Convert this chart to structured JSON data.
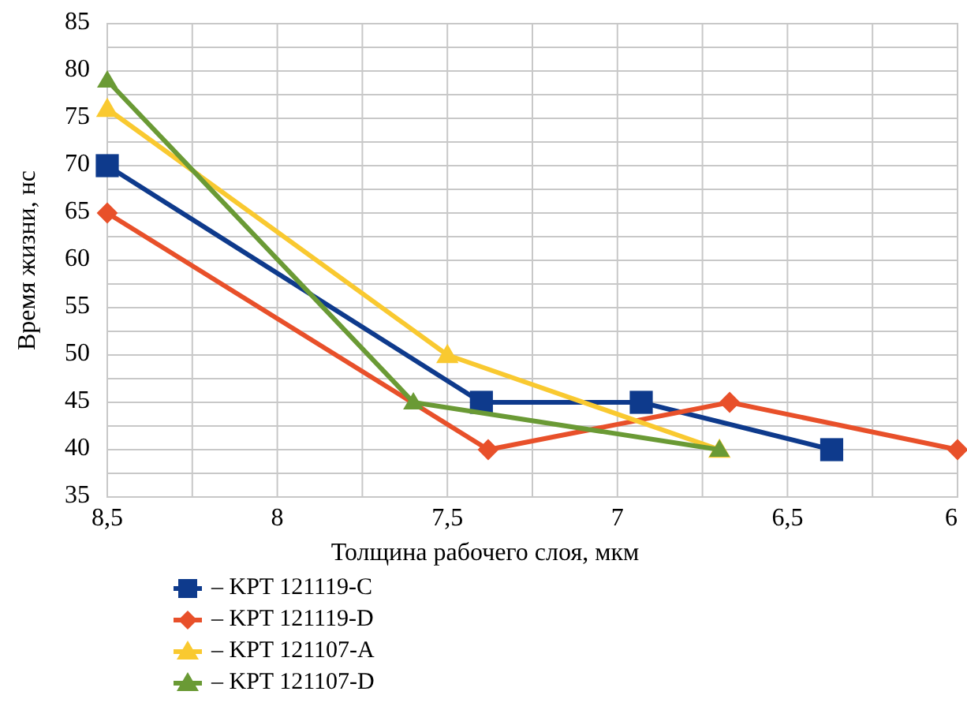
{
  "chart_data": {
    "type": "line",
    "xlabel": "Толщина рабочего слоя, мкм",
    "ylabel": "Время жизни, нс",
    "xlim": [
      8.5,
      6
    ],
    "ylim": [
      35,
      85
    ],
    "xticks": [
      {
        "value": 8.5,
        "label": "8,5"
      },
      {
        "value": 8.25,
        "label": null
      },
      8,
      {
        "value": 7.75,
        "label": null
      },
      {
        "value": 7.5,
        "label": "7,5"
      },
      {
        "value": 7.25,
        "label": null
      },
      7,
      {
        "value": 6.75,
        "label": null
      },
      {
        "value": 6.5,
        "label": "6,5"
      },
      {
        "value": 6.25,
        "label": null
      },
      6
    ],
    "yticks": [
      35,
      {
        "value": 37.5,
        "label": null
      },
      40,
      {
        "value": 42.5,
        "label": null
      },
      45,
      {
        "value": 47.5,
        "label": null
      },
      50,
      {
        "value": 52.5,
        "label": null
      },
      55,
      {
        "value": 57.5,
        "label": null
      },
      60,
      {
        "value": 62.5,
        "label": null
      },
      65,
      {
        "value": 67.5,
        "label": null
      },
      70,
      {
        "value": 72.5,
        "label": null
      },
      75,
      {
        "value": 77.5,
        "label": null
      },
      80,
      {
        "value": 82.5,
        "label": null
      },
      85
    ],
    "grid": true,
    "legend": "bottom",
    "series": [
      {
        "name": "– KPT 121119-C",
        "color": "#0e3a8c",
        "marker": "square",
        "x": [
          8.5,
          7.4,
          6.93,
          6.37
        ],
        "values": [
          70,
          45,
          45,
          40
        ]
      },
      {
        "name": "– KPT 121119-D",
        "color": "#e8502a",
        "marker": "diamond",
        "x": [
          8.5,
          7.38,
          6.67,
          6
        ],
        "values": [
          65,
          40,
          45,
          40
        ]
      },
      {
        "name": "– KPT 121107-A",
        "color": "#f9c930",
        "marker": "triangle",
        "x": [
          8.5,
          7.5,
          6.7
        ],
        "values": [
          76,
          50,
          40
        ]
      },
      {
        "name": "– KPT 121107-D",
        "color": "#6a9a35",
        "marker": "triangle",
        "x": [
          8.5,
          7.6,
          6.7
        ],
        "values": [
          79,
          45,
          40
        ]
      }
    ]
  }
}
